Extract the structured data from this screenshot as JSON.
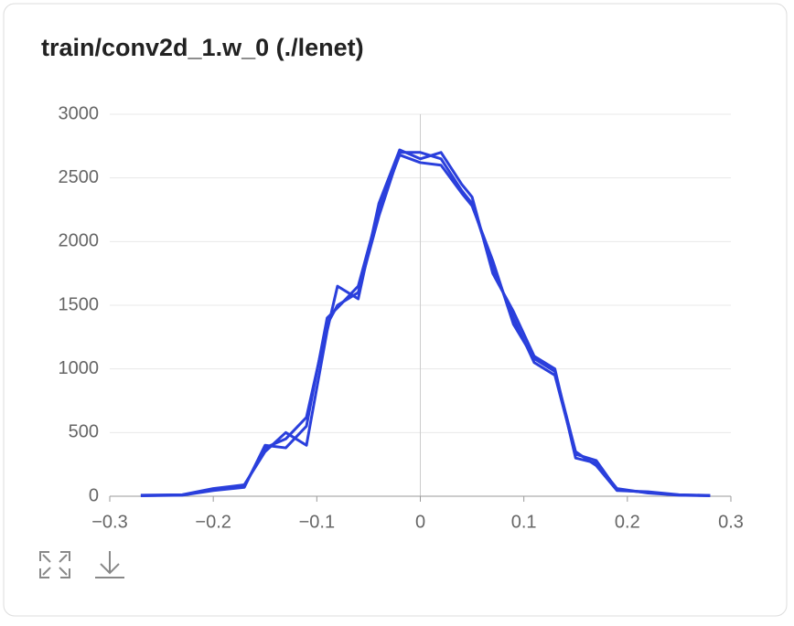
{
  "chart_data": {
    "type": "line",
    "title": "train/conv2d_1.w_0 (./lenet)",
    "x": [
      -0.27,
      -0.23,
      -0.2,
      -0.17,
      -0.15,
      -0.13,
      -0.11,
      -0.09,
      -0.08,
      -0.06,
      -0.04,
      -0.02,
      0,
      0.02,
      0.04,
      0.05,
      0.07,
      0.09,
      0.11,
      0.13,
      0.15,
      0.17,
      0.19,
      0.22,
      0.25,
      0.28
    ],
    "series": [
      {
        "color": "#2a3fdc",
        "values": [
          5,
          10,
          50,
          80,
          380,
          450,
          620,
          1350,
          1500,
          1600,
          2200,
          2700,
          2700,
          2650,
          2400,
          2300,
          1800,
          1400,
          1050,
          950,
          330,
          280,
          50,
          30,
          10,
          5
        ]
      },
      {
        "color": "#2a3fdc",
        "values": [
          8,
          12,
          60,
          90,
          350,
          500,
          400,
          1300,
          1650,
          1550,
          2300,
          2720,
          2650,
          2700,
          2450,
          2350,
          1750,
          1450,
          1100,
          1000,
          300,
          260,
          60,
          25,
          8,
          4
        ]
      },
      {
        "color": "#2a3fdc",
        "values": [
          4,
          8,
          45,
          70,
          400,
          380,
          550,
          1400,
          1480,
          1650,
          2250,
          2680,
          2620,
          2600,
          2380,
          2280,
          1850,
          1350,
          1080,
          980,
          350,
          240,
          45,
          35,
          12,
          6
        ]
      }
    ],
    "xlim": [
      -0.3,
      0.3
    ],
    "xticks": [
      {
        "value": -0.3,
        "label": "−0.3"
      },
      {
        "value": -0.2,
        "label": "−0.2"
      },
      {
        "value": -0.1,
        "label": "−0.1"
      },
      0,
      0.1,
      0.2,
      0.3
    ],
    "ylim": [
      0,
      3000
    ],
    "yticks": [
      0,
      500,
      1000,
      1500,
      2000,
      2500,
      3000
    ],
    "grid": true
  }
}
